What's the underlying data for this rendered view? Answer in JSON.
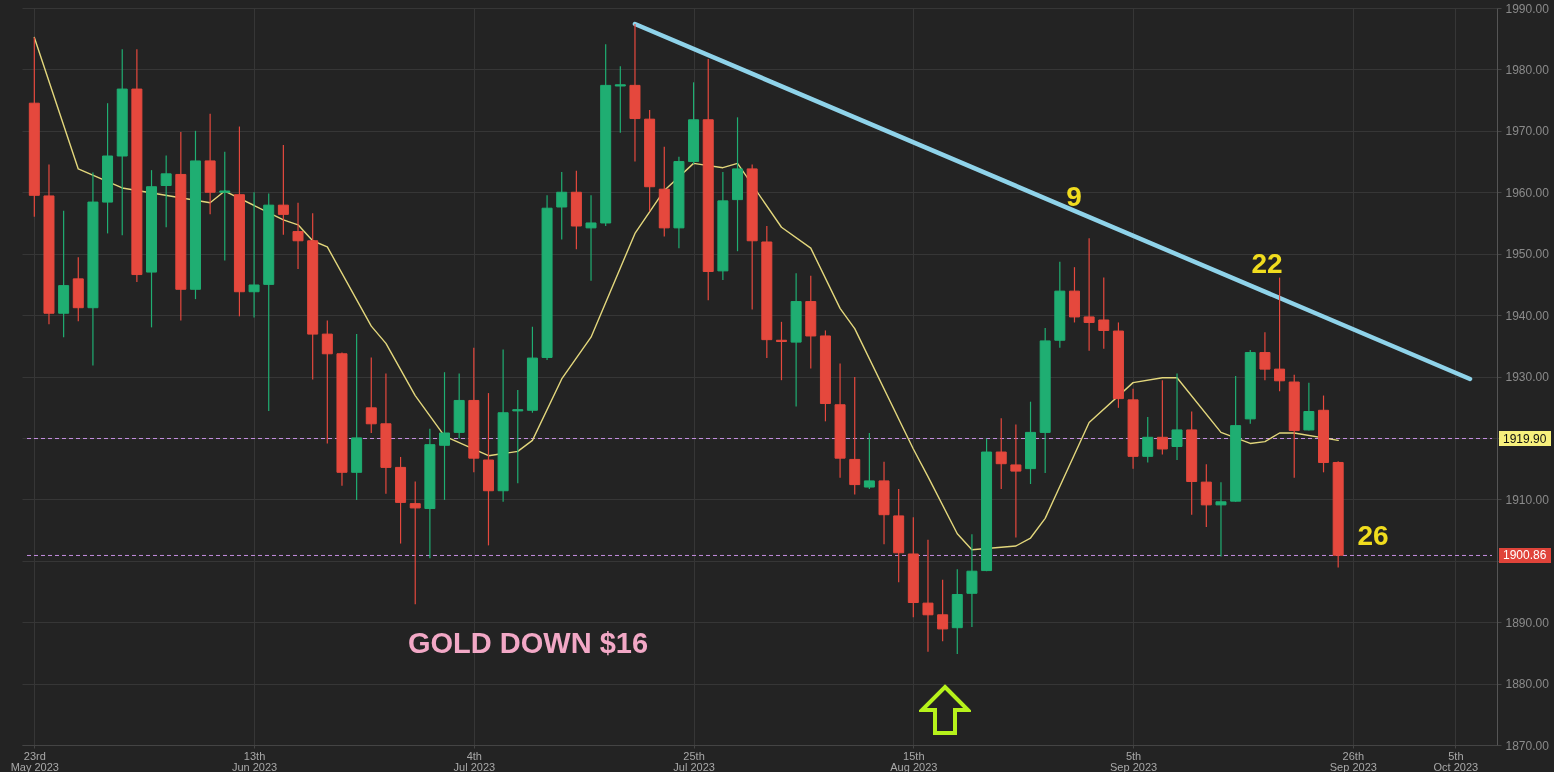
{
  "chart_data": {
    "type": "candlestick",
    "categories": [
      "23rd\nMay 2023",
      null,
      null,
      null,
      null,
      null,
      null,
      null,
      null,
      null,
      null,
      null,
      null,
      null,
      null,
      "13th\nJun 2023",
      null,
      null,
      null,
      null,
      null,
      null,
      null,
      null,
      null,
      null,
      null,
      null,
      null,
      null,
      "4th\nJul 2023",
      null,
      null,
      null,
      null,
      null,
      null,
      null,
      null,
      null,
      null,
      null,
      null,
      null,
      null,
      "25th\nJul 2023",
      null,
      null,
      null,
      null,
      null,
      null,
      null,
      null,
      null,
      null,
      null,
      null,
      null,
      null,
      "15th\nAug 2023",
      null,
      null,
      null,
      null,
      null,
      null,
      null,
      null,
      null,
      null,
      null,
      null,
      null,
      null,
      "5th\nSep 2023",
      null,
      null,
      null,
      null,
      null,
      null,
      null,
      null,
      null,
      null,
      null,
      null,
      null,
      null,
      "26th\nSep 2023",
      null,
      null,
      null,
      null,
      null,
      null,
      "5th\nOct 2023",
      null,
      null
    ],
    "ohlc": [
      [
        1974.5,
        1985.2,
        1956.0,
        1959.5
      ],
      [
        1959.4,
        1964.5,
        1938.5,
        1940.3
      ],
      [
        1940.3,
        1957.0,
        1936.4,
        1944.8
      ],
      [
        1945.9,
        1949.4,
        1939.0,
        1941.2
      ],
      [
        1941.2,
        1963.2,
        1931.8,
        1958.4
      ],
      [
        1958.4,
        1974.5,
        1953.3,
        1965.9
      ],
      [
        1965.9,
        1983.3,
        1953.0,
        1976.8
      ],
      [
        1976.8,
        1983.3,
        1945.4,
        1946.6
      ],
      [
        1947.0,
        1963.6,
        1938.0,
        1960.9
      ],
      [
        1961.1,
        1966.0,
        1954.3,
        1963.0
      ],
      [
        1962.9,
        1969.8,
        1939.1,
        1944.2
      ],
      [
        1944.2,
        1970.0,
        1942.6,
        1965.1
      ],
      [
        1965.1,
        1972.8,
        1956.4,
        1960.0
      ],
      [
        1960.0,
        1966.6,
        1948.9,
        1960.2
      ],
      [
        1959.6,
        1970.7,
        1939.8,
        1943.8
      ],
      [
        1943.8,
        1960.0,
        1939.6,
        1944.9
      ],
      [
        1945.0,
        1959.8,
        1924.4,
        1957.9
      ],
      [
        1957.9,
        1967.7,
        1953.1,
        1956.4
      ],
      [
        1953.6,
        1958.3,
        1947.5,
        1952.1
      ],
      [
        1952.1,
        1956.6,
        1929.5,
        1936.9
      ],
      [
        1936.9,
        1939.1,
        1919.1,
        1933.7
      ],
      [
        1933.7,
        1933.9,
        1912.2,
        1914.4
      ],
      [
        1914.4,
        1936.9,
        1909.9,
        1920.0
      ],
      [
        1924.9,
        1933.1,
        1920.8,
        1922.3
      ],
      [
        1922.3,
        1930.5,
        1910.9,
        1915.2
      ],
      [
        1915.2,
        1916.9,
        1902.8,
        1909.5
      ],
      [
        1909.3,
        1912.9,
        1892.9,
        1908.6
      ],
      [
        1908.5,
        1921.5,
        1900.4,
        1918.9
      ],
      [
        1918.8,
        1930.7,
        1909.9,
        1920.8
      ],
      [
        1920.9,
        1930.5,
        1919.9,
        1926.1
      ],
      [
        1926.1,
        1934.7,
        1914.4,
        1916.7
      ],
      [
        1916.4,
        1927.3,
        1902.5,
        1911.4
      ],
      [
        1911.4,
        1934.4,
        1909.6,
        1924.1
      ],
      [
        1924.4,
        1927.8,
        1912.6,
        1924.6
      ],
      [
        1924.5,
        1938.1,
        1924.1,
        1933.0
      ],
      [
        1933.1,
        1959.5,
        1932.7,
        1957.4
      ],
      [
        1957.6,
        1963.3,
        1952.3,
        1960.0
      ],
      [
        1960.0,
        1963.5,
        1950.7,
        1954.5
      ],
      [
        1954.2,
        1959.5,
        1945.6,
        1955.0
      ],
      [
        1955.0,
        1984.1,
        1954.5,
        1977.4
      ],
      [
        1977.3,
        1980.5,
        1969.7,
        1977.5
      ],
      [
        1977.4,
        1987.4,
        1965.0,
        1972.0
      ],
      [
        1971.9,
        1973.4,
        1956.9,
        1960.9
      ],
      [
        1960.5,
        1967.4,
        1952.8,
        1954.2
      ],
      [
        1954.2,
        1965.8,
        1950.9,
        1965.0
      ],
      [
        1965.0,
        1977.9,
        1964.6,
        1971.8
      ],
      [
        1971.8,
        1981.7,
        1942.4,
        1947.1
      ],
      [
        1947.2,
        1963.3,
        1945.7,
        1958.6
      ],
      [
        1958.8,
        1972.2,
        1950.4,
        1963.8
      ],
      [
        1963.8,
        1964.5,
        1940.9,
        1952.1
      ],
      [
        1951.9,
        1954.5,
        1933.0,
        1936.0
      ],
      [
        1935.9,
        1938.9,
        1929.4,
        1935.7
      ],
      [
        1935.6,
        1946.8,
        1925.1,
        1942.2
      ],
      [
        1942.2,
        1946.4,
        1931.3,
        1936.6
      ],
      [
        1936.6,
        1937.5,
        1922.7,
        1925.6
      ],
      [
        1925.4,
        1932.1,
        1913.5,
        1916.7
      ],
      [
        1916.5,
        1929.9,
        1910.8,
        1912.4
      ],
      [
        1912.0,
        1920.8,
        1911.7,
        1913.0
      ],
      [
        1913.0,
        1916.1,
        1902.7,
        1907.5
      ],
      [
        1907.3,
        1911.7,
        1896.5,
        1901.3
      ],
      [
        1901.1,
        1907.1,
        1890.8,
        1893.2
      ],
      [
        1893.1,
        1903.4,
        1885.2,
        1891.2
      ],
      [
        1891.2,
        1896.9,
        1886.9,
        1888.9
      ],
      [
        1889.1,
        1898.6,
        1884.8,
        1894.5
      ],
      [
        1894.7,
        1904.3,
        1889.2,
        1898.3
      ],
      [
        1898.4,
        1919.9,
        1898.3,
        1917.7
      ],
      [
        1917.7,
        1923.2,
        1911.7,
        1915.8
      ],
      [
        1915.6,
        1922.2,
        1903.8,
        1914.6
      ],
      [
        1915.0,
        1925.9,
        1912.5,
        1920.9
      ],
      [
        1920.9,
        1937.9,
        1914.3,
        1935.8
      ],
      [
        1935.9,
        1948.7,
        1934.7,
        1943.9
      ],
      [
        1943.9,
        1947.8,
        1938.8,
        1939.7
      ],
      [
        1939.7,
        1952.5,
        1934.2,
        1938.8
      ],
      [
        1939.2,
        1946.1,
        1934.5,
        1937.5
      ],
      [
        1937.4,
        1938.8,
        1924.9,
        1926.4
      ],
      [
        1926.2,
        1928.0,
        1915.0,
        1917.0
      ],
      [
        1917.0,
        1923.4,
        1916.0,
        1920.1
      ],
      [
        1920.1,
        1929.4,
        1917.3,
        1918.2
      ],
      [
        1918.6,
        1930.5,
        1916.4,
        1921.3
      ],
      [
        1921.3,
        1924.3,
        1907.5,
        1912.9
      ],
      [
        1912.8,
        1915.7,
        1905.5,
        1909.1
      ],
      [
        1909.1,
        1912.8,
        1900.7,
        1909.6
      ],
      [
        1909.7,
        1930.1,
        1909.6,
        1922.0
      ],
      [
        1923.1,
        1934.3,
        1922.3,
        1933.9
      ],
      [
        1933.9,
        1937.2,
        1929.4,
        1931.2
      ],
      [
        1931.2,
        1946.1,
        1927.6,
        1929.3
      ],
      [
        1929.1,
        1930.3,
        1913.5,
        1921.2
      ],
      [
        1921.3,
        1929.0,
        1921.2,
        1924.3
      ],
      [
        1924.5,
        1926.9,
        1914.4,
        1916.0
      ],
      [
        1916.0,
        1916.2,
        1898.9,
        1900.9
      ],
      null,
      null,
      null,
      null,
      null,
      null,
      null,
      null,
      null,
      null
    ],
    "colors": [
      "#e5483d",
      "#e5483d",
      "#1fae72",
      "#e5483d",
      "#1fae72",
      "#1fae72",
      "#1fae72",
      "#e5483d",
      "#1fae72",
      "#1fae72",
      "#e5483d",
      "#1fae72",
      "#e5483d",
      "#1fae72",
      "#e5483d",
      "#1fae72",
      "#1fae72",
      "#e5483d",
      "#e5483d",
      "#e5483d",
      "#e5483d",
      "#e5483d",
      "#1fae72",
      "#e5483d",
      "#e5483d",
      "#e5483d",
      "#e5483d",
      "#1fae72",
      "#1fae72",
      "#1fae72",
      "#e5483d",
      "#e5483d",
      "#1fae72",
      "#1fae72",
      "#1fae72",
      "#1fae72",
      "#1fae72",
      "#e5483d",
      "#1fae72",
      "#1fae72",
      "#1fae72",
      "#e5483d",
      "#e5483d",
      "#e5483d",
      "#1fae72",
      "#1fae72",
      "#e5483d",
      "#1fae72",
      "#1fae72",
      "#e5483d",
      "#e5483d",
      "#e5483d",
      "#1fae72",
      "#e5483d",
      "#e5483d",
      "#e5483d",
      "#e5483d",
      "#1fae72",
      "#e5483d",
      "#e5483d",
      "#e5483d",
      "#e5483d",
      "#e5483d",
      "#1fae72",
      "#1fae72",
      "#1fae72",
      "#e5483d",
      "#e5483d",
      "#1fae72",
      "#1fae72",
      "#1fae72",
      "#e5483d",
      "#e5483d",
      "#e5483d",
      "#e5483d",
      "#e5483d",
      "#1fae72",
      "#e5483d",
      "#1fae72",
      "#e5483d",
      "#e5483d",
      "#1fae72",
      "#1fae72",
      "#1fae72",
      "#e5483d",
      "#e5483d",
      "#e5483d",
      "#1fae72",
      "#e5483d",
      "#e5483d",
      null,
      null,
      null,
      null,
      null,
      null,
      null,
      null,
      null,
      null
    ],
    "series": [
      {
        "type": "line",
        "color": "#e3d77c",
        "values": [
          1985.2,
          null,
          null,
          1963.8,
          null,
          null,
          1960.7,
          null,
          null,
          null,
          null,
          null,
          1958.3,
          1960.2,
          null,
          null,
          null,
          1955.5,
          1954.7,
          1952.1,
          1951.1,
          null,
          null,
          1938.2,
          1935.4,
          null,
          1926.9,
          null,
          1920.3,
          null,
          null,
          1917.1,
          null,
          1917.8,
          1919.6,
          null,
          1929.6,
          null,
          1936.4,
          null,
          null,
          1953.3,
          null,
          1960.3,
          null,
          1964.7,
          null,
          1964.0,
          1964.7,
          null,
          null,
          1954.3,
          null,
          1950.9,
          null,
          1941.1,
          1937.8,
          null,
          null,
          null,
          1918.2,
          1913.7,
          null,
          1904.4,
          1901.8,
          null,
          null,
          1902.4,
          1903.7,
          1906.9,
          null,
          null,
          1922.5,
          null,
          null,
          1929.0,
          null,
          1929.8,
          1929.8,
          null,
          null,
          1920.9,
          null,
          1919.1,
          1919.4,
          1920.8,
          1920.8,
          null,
          null,
          1919.6,
          null,
          null,
          null,
          null,
          null,
          null,
          null,
          null,
          null,
          null
        ]
      },
      {
        "type": "line",
        "color": "#8fd3ea",
        "values": [
          null,
          null,
          null,
          null,
          null,
          null,
          null,
          null,
          null,
          null,
          null,
          null,
          null,
          null,
          null,
          null,
          null,
          null,
          null,
          null,
          null,
          null,
          null,
          null,
          null,
          null,
          null,
          null,
          null,
          null,
          null,
          null,
          null,
          null,
          null,
          null,
          null,
          null,
          null,
          null,
          null,
          1987.4,
          null,
          null,
          null,
          null,
          null,
          null,
          null,
          null,
          null,
          null,
          null,
          null,
          null,
          null,
          null,
          null,
          null,
          null,
          null,
          null,
          null,
          null,
          null,
          null,
          null,
          null,
          null,
          null,
          null,
          null,
          null,
          null,
          null,
          null,
          null,
          null,
          null,
          null,
          null,
          null,
          null,
          null,
          null,
          null,
          null,
          null,
          null,
          null,
          null,
          null,
          null,
          null,
          null,
          null,
          null,
          null,
          1929.6,
          null
        ]
      }
    ],
    "ylim": [
      1870,
      1990
    ],
    "yticks": [
      {
        "value": 1870,
        "label": "1870.00"
      },
      {
        "value": 1880,
        "label": "1880.00"
      },
      {
        "value": 1890,
        "label": "1890.00"
      },
      {
        "value": 1900,
        "label": null
      },
      {
        "value": 1910,
        "label": "1910.00"
      },
      {
        "value": 1920,
        "label": null
      },
      {
        "value": 1930,
        "label": "1930.00"
      },
      {
        "value": 1940,
        "label": "1940.00"
      },
      {
        "value": 1950,
        "label": "1950.00"
      },
      {
        "value": 1960,
        "label": "1960.00"
      },
      {
        "value": 1970,
        "label": "1970.00"
      },
      {
        "value": 1980,
        "label": "1980.00"
      },
      {
        "value": 1990,
        "label": "1990.00"
      }
    ],
    "ref_lines": [
      {
        "axis": "y",
        "value": 1919.9,
        "label": "1919.90",
        "color": "#c58ee0",
        "line_style": "dashed"
      },
      {
        "axis": "y",
        "value": 1900.86,
        "label": "1900.86",
        "color": "#c58ee0",
        "line_style": "dashed"
      }
    ],
    "annotations": [
      "9",
      "22",
      "26",
      "GOLD DOWN $16"
    ],
    "grid": true,
    "marker": "none"
  }
}
